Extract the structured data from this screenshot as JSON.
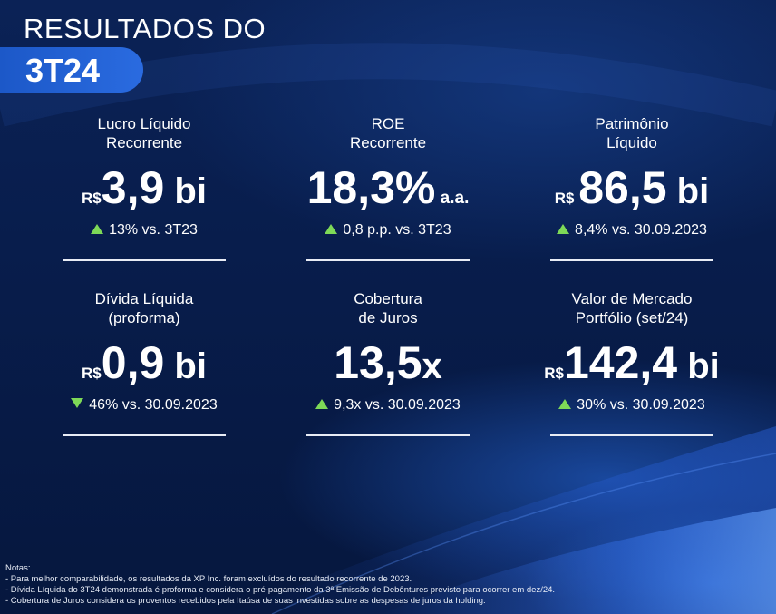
{
  "title": {
    "line1": "RESULTADOS DO",
    "line2": "3T24"
  },
  "colors": {
    "background": "#081d4c",
    "accent": "#2a6be0",
    "positive": "#7ed957"
  },
  "metrics": [
    {
      "label_line1": "Lucro Líquido",
      "label_line2": "Recorrente",
      "prefix": "R$",
      "value": "3,9",
      "unit": " bi",
      "suffix": "",
      "direction": "up",
      "change": "13% vs. 3T23"
    },
    {
      "label_line1": "ROE",
      "label_line2": "Recorrente",
      "prefix": "",
      "value": "18,3%",
      "unit": "",
      "suffix": " a.a.",
      "direction": "up",
      "change": "0,8 p.p. vs. 3T23"
    },
    {
      "label_line1": "Patrimônio",
      "label_line2": "Líquido",
      "prefix": "R$ ",
      "value": "86,5",
      "unit": " bi",
      "suffix": "",
      "direction": "up",
      "change": "8,4% vs. 30.09.2023"
    },
    {
      "label_line1": "Dívida Líquida",
      "label_line2": "(proforma)",
      "prefix": "R$",
      "value": "0,9",
      "unit": " bi",
      "suffix": "",
      "direction": "down",
      "change": "46% vs. 30.09.2023"
    },
    {
      "label_line1": "Cobertura",
      "label_line2": "de Juros",
      "prefix": "",
      "value": "13,5",
      "unit": "x",
      "suffix": "",
      "direction": "up",
      "change": "9,3x vs. 30.09.2023"
    },
    {
      "label_line1": "Valor de Mercado",
      "label_line2": "Portfólio (set/24)",
      "prefix": "R$",
      "value": "142,4",
      "unit": " bi",
      "suffix": "",
      "direction": "up",
      "change": "30% vs. 30.09.2023"
    }
  ],
  "notes": {
    "heading": "Notas:",
    "items": [
      "- Para melhor comparabilidade, os resultados da XP Inc. foram excluídos do resultado recorrente de 2023.",
      "- Dívida Líquida do 3T24 demonstrada é proforma e considera o pré-pagamento da 3ª Emissão de Debêntures previsto para ocorrer em dez/24.",
      "- Cobertura de Juros considera os proventos recebidos pela Itaúsa de suas investidas sobre as despesas de juros da holding."
    ]
  }
}
